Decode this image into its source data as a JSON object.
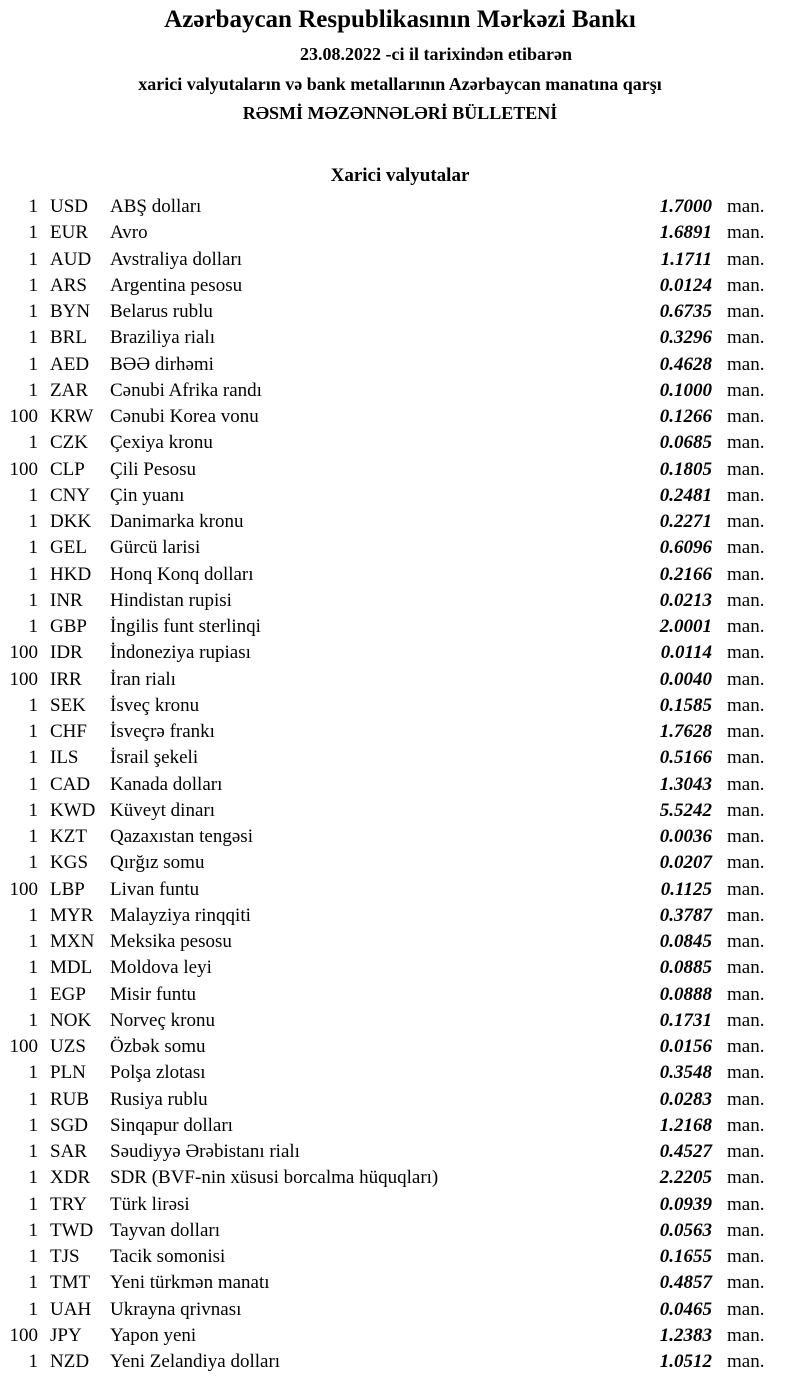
{
  "header": {
    "title": "Azərbaycan Respublikasının Mərkəzi Bankı",
    "date_line": "23.08.2022 -ci il tarixindən etibarən",
    "subtitle": "xarici valyutaların və bank metallarının Azərbaycan manatına qarşı",
    "bulletin": "RƏSMİ MƏZƏNNƏLƏRİ BÜLLETENİ"
  },
  "section_title": "Xarici valyutalar",
  "unit_label": "man.",
  "rates": [
    {
      "amount": "1",
      "code": "USD",
      "name": "ABŞ dolları",
      "rate": "1.7000"
    },
    {
      "amount": "1",
      "code": "EUR",
      "name": "Avro",
      "rate": "1.6891"
    },
    {
      "amount": "1",
      "code": "AUD",
      "name": "Avstraliya dolları",
      "rate": "1.1711"
    },
    {
      "amount": "1",
      "code": "ARS",
      "name": "Argentina pesosu",
      "rate": "0.0124"
    },
    {
      "amount": "1",
      "code": "BYN",
      "name": "Belarus rublu",
      "rate": "0.6735"
    },
    {
      "amount": "1",
      "code": "BRL",
      "name": "Braziliya rialı",
      "rate": "0.3296"
    },
    {
      "amount": "1",
      "code": "AED",
      "name": "BƏƏ dirhəmi",
      "rate": "0.4628"
    },
    {
      "amount": "1",
      "code": "ZAR",
      "name": "Cənubi Afrika randı",
      "rate": "0.1000"
    },
    {
      "amount": "100",
      "code": "KRW",
      "name": "Cənubi Korea vonu",
      "rate": "0.1266"
    },
    {
      "amount": "1",
      "code": "CZK",
      "name": "Çexiya kronu",
      "rate": "0.0685"
    },
    {
      "amount": "100",
      "code": "CLP",
      "name": "Çili Pesosu",
      "rate": "0.1805"
    },
    {
      "amount": "1",
      "code": "CNY",
      "name": "Çin yuanı",
      "rate": "0.2481"
    },
    {
      "amount": "1",
      "code": "DKK",
      "name": "Danimarka kronu",
      "rate": "0.2271"
    },
    {
      "amount": "1",
      "code": "GEL",
      "name": "Gürcü larisi",
      "rate": "0.6096"
    },
    {
      "amount": "1",
      "code": "HKD",
      "name": "Honq Konq dolları",
      "rate": "0.2166"
    },
    {
      "amount": "1",
      "code": "INR",
      "name": "Hindistan rupisi",
      "rate": "0.0213"
    },
    {
      "amount": "1",
      "code": "GBP",
      "name": "İngilis funt sterlinqi",
      "rate": "2.0001"
    },
    {
      "amount": "100",
      "code": "IDR",
      "name": "İndoneziya rupiası",
      "rate": "0.0114"
    },
    {
      "amount": "100",
      "code": "IRR",
      "name": "İran rialı",
      "rate": "0.0040"
    },
    {
      "amount": "1",
      "code": "SEK",
      "name": "İsveç kronu",
      "rate": "0.1585"
    },
    {
      "amount": "1",
      "code": "CHF",
      "name": "İsveçrə frankı",
      "rate": "1.7628"
    },
    {
      "amount": "1",
      "code": "ILS",
      "name": "İsrail şekeli",
      "rate": "0.5166"
    },
    {
      "amount": "1",
      "code": "CAD",
      "name": "Kanada dolları",
      "rate": "1.3043"
    },
    {
      "amount": "1",
      "code": "KWD",
      "name": "Küveyt dinarı",
      "rate": "5.5242"
    },
    {
      "amount": "1",
      "code": "KZT",
      "name": "Qazaxıstan tengəsi",
      "rate": "0.0036"
    },
    {
      "amount": "1",
      "code": "KGS",
      "name": "Qırğız somu",
      "rate": "0.0207"
    },
    {
      "amount": "100",
      "code": "LBP",
      "name": "Livan funtu",
      "rate": "0.1125"
    },
    {
      "amount": "1",
      "code": "MYR",
      "name": "Malayziya rinqqiti",
      "rate": "0.3787"
    },
    {
      "amount": "1",
      "code": "MXN",
      "name": "Meksika pesosu",
      "rate": "0.0845"
    },
    {
      "amount": "1",
      "code": "MDL",
      "name": "Moldova leyi",
      "rate": "0.0885"
    },
    {
      "amount": "1",
      "code": "EGP",
      "name": "Misir funtu",
      "rate": "0.0888"
    },
    {
      "amount": "1",
      "code": "NOK",
      "name": "Norveç kronu",
      "rate": "0.1731"
    },
    {
      "amount": "100",
      "code": "UZS",
      "name": "Özbək somu",
      "rate": "0.0156"
    },
    {
      "amount": "1",
      "code": "PLN",
      "name": "Polşa zlotası",
      "rate": "0.3548"
    },
    {
      "amount": "1",
      "code": "RUB",
      "name": "Rusiya rublu",
      "rate": "0.0283"
    },
    {
      "amount": "1",
      "code": "SGD",
      "name": "Sinqapur dolları",
      "rate": "1.2168"
    },
    {
      "amount": "1",
      "code": "SAR",
      "name": "Səudiyyə Ərəbistanı rialı",
      "rate": "0.4527"
    },
    {
      "amount": "1",
      "code": "XDR",
      "name": "SDR (BVF-nin xüsusi borcalma hüquqları)",
      "rate": "2.2205"
    },
    {
      "amount": "1",
      "code": "TRY",
      "name": "Türk lirəsi",
      "rate": "0.0939"
    },
    {
      "amount": "1",
      "code": "TWD",
      "name": "Tayvan dolları",
      "rate": "0.0563"
    },
    {
      "amount": "1",
      "code": "TJS",
      "name": "Tacik somonisi",
      "rate": "0.1655"
    },
    {
      "amount": "1",
      "code": "TMT",
      "name": "Yeni türkmən manatı",
      "rate": "0.4857"
    },
    {
      "amount": "1",
      "code": "UAH",
      "name": "Ukrayna qrivnası",
      "rate": "0.0465"
    },
    {
      "amount": "100",
      "code": "JPY",
      "name": "Yapon yeni",
      "rate": "1.2383"
    },
    {
      "amount": "1",
      "code": "NZD",
      "name": "Yeni Zelandiya dolları",
      "rate": "1.0512"
    }
  ]
}
